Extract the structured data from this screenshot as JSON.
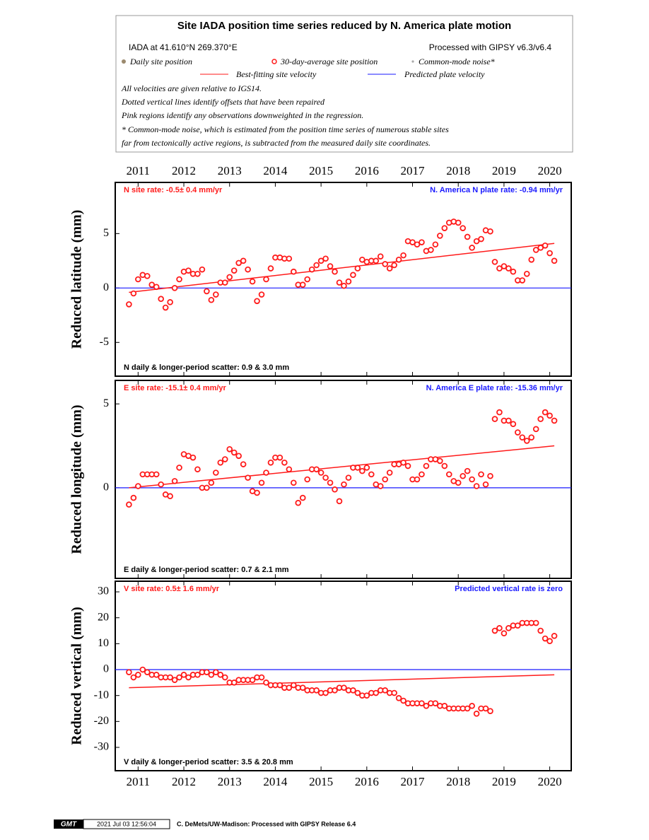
{
  "legend": {
    "title": "Site IADA position time series reduced by N. America plate motion",
    "site": "IADA at 41.610°N 269.370°E",
    "processing": "Processed with GIPSY v6.3/v6.4",
    "entries": [
      "Daily site position",
      "30-day-average site position",
      "Common-mode noise*",
      "Best-fitting site velocity",
      "Predicted plate velocity"
    ],
    "notes": [
      "All velocities are given relative to IGS14.",
      "Dotted vertical lines identify offsets that have been repaired",
      "Pink regions identify any observations downweighted in the regression.",
      "* Common-mode noise, which is estimated from the position time series of numerous stable sites",
      "far from tectonically active regions, is subtracted from the measured daily site coordinates."
    ]
  },
  "chart_data": [
    {
      "type": "scatter",
      "ylabel": "Reduced latitude (mm)",
      "rate_label": "N site rate:  -0.5± 0.4 mm/yr",
      "plate_label": "N. America N plate rate: -0.94 mm/yr",
      "scatter_label": "N daily & longer-period scatter:   0.9 &   3.0 mm",
      "xlim": [
        2010.5,
        2020.47
      ],
      "xticks": [
        2011,
        2012,
        2013,
        2014,
        2015,
        2016,
        2017,
        2018,
        2019,
        2020
      ],
      "ylim": [
        -8.1,
        9.7
      ],
      "yticks": [
        -5,
        0,
        5
      ],
      "x": [
        2010.8,
        2010.9,
        2011.0,
        2011.1,
        2011.2,
        2011.3,
        2011.4,
        2011.5,
        2011.6,
        2011.7,
        2011.8,
        2011.9,
        2012.0,
        2012.1,
        2012.2,
        2012.3,
        2012.4,
        2012.5,
        2012.6,
        2012.7,
        2012.8,
        2012.9,
        2013.0,
        2013.1,
        2013.2,
        2013.3,
        2013.4,
        2013.5,
        2013.6,
        2013.7,
        2013.8,
        2013.9,
        2014.0,
        2014.1,
        2014.2,
        2014.3,
        2014.4,
        2014.5,
        2014.6,
        2014.7,
        2014.8,
        2014.9,
        2015.0,
        2015.1,
        2015.2,
        2015.3,
        2015.4,
        2015.5,
        2015.6,
        2015.7,
        2015.8,
        2015.9,
        2016.0,
        2016.1,
        2016.2,
        2016.3,
        2016.4,
        2016.5,
        2016.6,
        2016.7,
        2016.8,
        2016.9,
        2017.0,
        2017.1,
        2017.2,
        2017.3,
        2017.4,
        2017.5,
        2017.6,
        2017.7,
        2017.8,
        2017.9,
        2018.0,
        2018.1,
        2018.2,
        2018.3,
        2018.4,
        2018.5,
        2018.6,
        2018.7,
        2018.8,
        2018.9,
        2019.0,
        2019.1,
        2019.2,
        2019.3,
        2019.4,
        2019.5,
        2019.6,
        2019.7,
        2019.8,
        2019.9,
        2020.0,
        2020.1
      ],
      "series": [
        {
          "color": "#ff1a1a",
          "values": [
            -1.5,
            -0.5,
            0.8,
            1.2,
            1.1,
            0.3,
            0.1,
            -1.0,
            -1.8,
            -1.3,
            0.0,
            0.8,
            1.5,
            1.6,
            1.3,
            1.3,
            1.7,
            -0.3,
            -1.1,
            -0.6,
            0.5,
            0.5,
            1.0,
            1.6,
            2.3,
            2.5,
            1.7,
            0.6,
            -1.2,
            -0.6,
            0.8,
            1.8,
            2.8,
            2.8,
            2.7,
            2.7,
            1.5,
            0.3,
            0.3,
            0.8,
            1.7,
            2.1,
            2.5,
            2.7,
            2.0,
            1.5,
            0.5,
            0.2,
            0.6,
            1.2,
            1.8,
            2.6,
            2.4,
            2.5,
            2.5,
            2.9,
            2.2,
            1.8,
            2.1,
            2.6,
            3.0,
            4.3,
            4.2,
            4.0,
            4.2,
            3.4,
            3.5,
            4.0,
            4.8,
            5.5,
            6.0,
            6.1,
            6.0,
            5.5,
            4.7,
            3.7,
            4.3,
            4.5,
            5.3,
            5.2,
            2.4,
            1.8,
            2.0,
            1.8,
            1.5,
            0.7,
            0.7,
            1.3,
            2.6,
            3.5,
            3.7,
            3.9,
            3.2,
            2.5
          ]
        }
      ],
      "fit": {
        "color": "#ff1a1a",
        "x": [
          2010.8,
          2020.1
        ],
        "values": [
          -0.4,
          4.1
        ]
      },
      "reference_line": {
        "color": "#1a1aff",
        "value": 0
      }
    },
    {
      "type": "scatter",
      "ylabel": "Reduced longitude (mm)",
      "rate_label": "E site rate: -15.1± 0.4 mm/yr",
      "plate_label": "N. America E plate rate: -15.36 mm/yr",
      "scatter_label": "E daily & longer-period scatter:   0.7 &   2.1 mm",
      "xlim": [
        2010.5,
        2020.47
      ],
      "xticks": [
        2011,
        2012,
        2013,
        2014,
        2015,
        2016,
        2017,
        2018,
        2019,
        2020
      ],
      "ylim": [
        -5.4,
        6.4
      ],
      "yticks": [
        0,
        5
      ],
      "x": [
        2010.8,
        2010.9,
        2011.0,
        2011.1,
        2011.2,
        2011.3,
        2011.4,
        2011.5,
        2011.6,
        2011.7,
        2011.8,
        2011.9,
        2012.0,
        2012.1,
        2012.2,
        2012.3,
        2012.4,
        2012.5,
        2012.6,
        2012.7,
        2012.8,
        2012.9,
        2013.0,
        2013.1,
        2013.2,
        2013.3,
        2013.4,
        2013.5,
        2013.6,
        2013.7,
        2013.8,
        2013.9,
        2014.0,
        2014.1,
        2014.2,
        2014.3,
        2014.4,
        2014.5,
        2014.6,
        2014.7,
        2014.8,
        2014.9,
        2015.0,
        2015.1,
        2015.2,
        2015.3,
        2015.4,
        2015.5,
        2015.6,
        2015.7,
        2015.8,
        2015.9,
        2016.0,
        2016.1,
        2016.2,
        2016.3,
        2016.4,
        2016.5,
        2016.6,
        2016.7,
        2016.8,
        2016.9,
        2017.0,
        2017.1,
        2017.2,
        2017.3,
        2017.4,
        2017.5,
        2017.6,
        2017.7,
        2017.8,
        2017.9,
        2018.0,
        2018.1,
        2018.2,
        2018.3,
        2018.4,
        2018.5,
        2018.6,
        2018.7,
        2018.8,
        2018.9,
        2019.0,
        2019.1,
        2019.2,
        2019.3,
        2019.4,
        2019.5,
        2019.6,
        2019.7,
        2019.8,
        2019.9,
        2020.0,
        2020.1
      ],
      "series": [
        {
          "color": "#ff1a1a",
          "values": [
            -1.0,
            -0.6,
            0.1,
            0.8,
            0.8,
            0.8,
            0.8,
            0.2,
            -0.4,
            -0.5,
            0.4,
            1.2,
            2.0,
            1.9,
            1.8,
            1.1,
            0.0,
            0.0,
            0.3,
            0.9,
            1.5,
            1.7,
            2.3,
            2.1,
            1.9,
            1.4,
            0.6,
            -0.2,
            -0.3,
            0.3,
            0.9,
            1.5,
            1.8,
            1.8,
            1.5,
            1.1,
            0.3,
            -0.9,
            -0.6,
            0.5,
            1.1,
            1.1,
            0.9,
            0.6,
            0.3,
            -0.1,
            -0.8,
            0.2,
            0.6,
            1.2,
            1.2,
            1.0,
            1.2,
            0.8,
            0.2,
            0.1,
            0.5,
            0.9,
            1.4,
            1.4,
            1.5,
            1.3,
            0.5,
            0.5,
            0.8,
            1.3,
            1.7,
            1.7,
            1.6,
            1.3,
            0.8,
            0.4,
            0.3,
            0.7,
            1.0,
            0.5,
            0.1,
            0.8,
            0.2,
            0.7,
            4.1,
            4.5,
            4.0,
            4.0,
            3.8,
            3.3,
            3.0,
            2.8,
            3.0,
            3.5,
            4.1,
            4.5,
            4.3,
            4.0
          ]
        }
      ],
      "fit": {
        "color": "#ff1a1a",
        "x": [
          2010.8,
          2020.1
        ],
        "values": [
          0.0,
          2.5
        ]
      },
      "reference_line": {
        "color": "#1a1aff",
        "value": 0
      }
    },
    {
      "type": "scatter",
      "ylabel": "Reduced vertical (mm)",
      "rate_label": "V site rate:  0.5± 1.6 mm/yr",
      "plate_label": "Predicted vertical rate is zero",
      "scatter_label": "V daily & longer-period scatter:   3.5 &  20.8 mm",
      "xlim": [
        2010.5,
        2020.47
      ],
      "xticks": [
        2011,
        2012,
        2013,
        2014,
        2015,
        2016,
        2017,
        2018,
        2019,
        2020
      ],
      "ylim": [
        -39,
        34.1
      ],
      "yticks": [
        -30,
        -20,
        -10,
        0,
        10,
        20,
        30
      ],
      "x": [
        2010.8,
        2010.9,
        2011.0,
        2011.1,
        2011.2,
        2011.3,
        2011.4,
        2011.5,
        2011.6,
        2011.7,
        2011.8,
        2011.9,
        2012.0,
        2012.1,
        2012.2,
        2012.3,
        2012.4,
        2012.5,
        2012.6,
        2012.7,
        2012.8,
        2012.9,
        2013.0,
        2013.1,
        2013.2,
        2013.3,
        2013.4,
        2013.5,
        2013.6,
        2013.7,
        2013.8,
        2013.9,
        2014.0,
        2014.1,
        2014.2,
        2014.3,
        2014.4,
        2014.5,
        2014.6,
        2014.7,
        2014.8,
        2014.9,
        2015.0,
        2015.1,
        2015.2,
        2015.3,
        2015.4,
        2015.5,
        2015.6,
        2015.7,
        2015.8,
        2015.9,
        2016.0,
        2016.1,
        2016.2,
        2016.3,
        2016.4,
        2016.5,
        2016.6,
        2016.7,
        2016.8,
        2016.9,
        2017.0,
        2017.1,
        2017.2,
        2017.3,
        2017.4,
        2017.5,
        2017.6,
        2017.7,
        2017.8,
        2017.9,
        2018.0,
        2018.1,
        2018.2,
        2018.3,
        2018.4,
        2018.5,
        2018.6,
        2018.7,
        2018.8,
        2018.9,
        2019.0,
        2019.1,
        2019.2,
        2019.3,
        2019.4,
        2019.5,
        2019.6,
        2019.7,
        2019.8,
        2019.9,
        2020.0,
        2020.1
      ],
      "series": [
        {
          "color": "#ff1a1a",
          "values": [
            -1,
            -3,
            -2,
            0,
            -1,
            -2,
            -2,
            -3,
            -3,
            -3,
            -4,
            -3,
            -2,
            -3,
            -2,
            -2,
            -1,
            -1,
            -2,
            -1,
            -2,
            -3,
            -5,
            -5,
            -4,
            -4,
            -4,
            -4,
            -3,
            -3,
            -5,
            -6,
            -6,
            -6,
            -7,
            -7,
            -6,
            -7,
            -7,
            -8,
            -8,
            -8,
            -9,
            -9,
            -8,
            -8,
            -7,
            -7,
            -8,
            -8,
            -9,
            -10,
            -10,
            -9,
            -9,
            -8,
            -8,
            -9,
            -9,
            -11,
            -12,
            -13,
            -13,
            -13,
            -13,
            -14,
            -13,
            -13,
            -14,
            -14,
            -15,
            -15,
            -15,
            -15,
            -15,
            -14,
            -17,
            -15,
            -15,
            -16,
            15,
            16,
            14,
            16,
            17,
            17,
            18,
            18,
            18,
            18,
            15,
            12,
            11,
            13
          ]
        }
      ],
      "fit": {
        "color": "#ff1a1a",
        "x": [
          2010.8,
          2020.1
        ],
        "values": [
          -7,
          -2
        ]
      },
      "reference_line": {
        "color": "#1a1aff",
        "value": 0
      }
    }
  ],
  "footer": {
    "logo": "GMT",
    "timestamp": "2021 Jul 03 12:56:04",
    "credit": "C. DeMets/UW-Madison: Processed with GIPSY Release 6.4"
  }
}
